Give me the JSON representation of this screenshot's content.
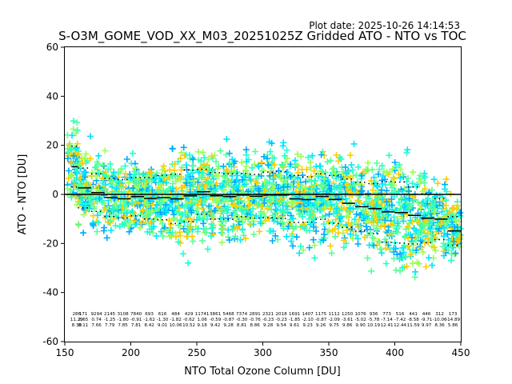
{
  "plot_date": "Plot date: 2025-10-26 14:14:53",
  "chart_data": {
    "type": "scatter",
    "title": "S-O3M_GOME_VOD_XX_M03_20251025Z Gridded ATO - NTO vs TOC",
    "xlabel": "NTO Total Ozone Column [DU]",
    "ylabel": "ATO - NTO [DU]",
    "xlim": [
      150,
      450
    ],
    "ylim": [
      -60,
      60
    ],
    "xticks": [
      150,
      200,
      250,
      300,
      350,
      400,
      450
    ],
    "yticks": [
      -60,
      -40,
      -20,
      0,
      20,
      40,
      60
    ],
    "grid": false,
    "zero_line": 0,
    "scatter_colors": [
      "#00e5ff",
      "#22ffcc",
      "#55ff99",
      "#99ff55",
      "#ffcc00",
      "#00aaff"
    ],
    "bins": [
      {
        "x": 155,
        "count": "286",
        "mean": "11.29",
        "std": "8.30"
      },
      {
        "x": 160,
        "count": "171",
        "mean": "2.65",
        "std": "8.11"
      },
      {
        "x": 170,
        "count": "9294",
        "mean": "0.74",
        "std": "7.66"
      },
      {
        "x": 180,
        "count": "2145",
        "mean": "-1.25",
        "std": "7.79"
      },
      {
        "x": 190,
        "count": "3108",
        "mean": "-1.80",
        "std": "7.85"
      },
      {
        "x": 200,
        "count": "7840",
        "mean": "-0.91",
        "std": "7.81"
      },
      {
        "x": 210,
        "count": "693",
        "mean": "-1.62",
        "std": "8.42"
      },
      {
        "x": 220,
        "count": "616",
        "mean": "-1.30",
        "std": "9.01"
      },
      {
        "x": 230,
        "count": "484",
        "mean": "-1.82",
        "std": "10.06"
      },
      {
        "x": 240,
        "count": "429",
        "mean": "-0.62",
        "std": "10.52"
      },
      {
        "x": 250,
        "count": "11741",
        "mean": "1.06",
        "std": "9.18"
      },
      {
        "x": 260,
        "count": "3861",
        "mean": "-0.59",
        "std": "9.42"
      },
      {
        "x": 270,
        "count": "5468",
        "mean": "-0.87",
        "std": "9.28"
      },
      {
        "x": 280,
        "count": "7374",
        "mean": "-0.30",
        "std": "8.81"
      },
      {
        "x": 290,
        "count": "2891",
        "mean": "-0.76",
        "std": "8.86"
      },
      {
        "x": 300,
        "count": "2321",
        "mean": "-0.23",
        "std": "9.28"
      },
      {
        "x": 310,
        "count": "2018",
        "mean": "-0.23",
        "std": "9.54"
      },
      {
        "x": 320,
        "count": "1691",
        "mean": "-1.85",
        "std": "9.61"
      },
      {
        "x": 330,
        "count": "1407",
        "mean": "-2.10",
        "std": "9.23"
      },
      {
        "x": 340,
        "count": "1175",
        "mean": "-0.87",
        "std": "9.26"
      },
      {
        "x": 350,
        "count": "1112",
        "mean": "-2.09",
        "std": "9.75"
      },
      {
        "x": 360,
        "count": "1250",
        "mean": "-3.61",
        "std": "9.86"
      },
      {
        "x": 370,
        "count": "1076",
        "mean": "-5.02",
        "std": "9.90"
      },
      {
        "x": 380,
        "count": "936",
        "mean": "-5.78",
        "std": "10.19"
      },
      {
        "x": 390,
        "count": "773",
        "mean": "-7.14",
        "std": "12.41"
      },
      {
        "x": 400,
        "count": "516",
        "mean": "-7.42",
        "std": "12.44"
      },
      {
        "x": 410,
        "count": "441",
        "mean": "-8.58",
        "std": "11.59"
      },
      {
        "x": 420,
        "count": "446",
        "mean": "-9.71",
        "std": "9.97"
      },
      {
        "x": 430,
        "count": "312",
        "mean": "-10.06",
        "std": "8.36"
      },
      {
        "x": 440,
        "count": "173",
        "mean": "-14.89",
        "std": "5.86"
      }
    ]
  }
}
